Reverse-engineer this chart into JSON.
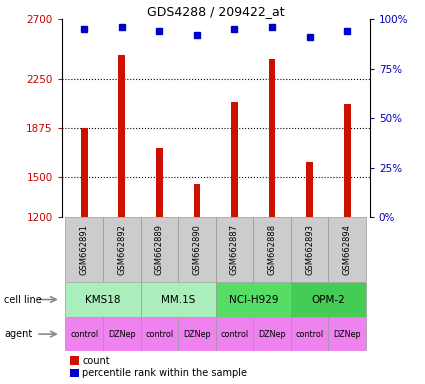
{
  "title": "GDS4288 / 209422_at",
  "samples": [
    "GSM662891",
    "GSM662892",
    "GSM662889",
    "GSM662890",
    "GSM662887",
    "GSM662888",
    "GSM662893",
    "GSM662894"
  ],
  "counts": [
    1875,
    2430,
    1720,
    1450,
    2070,
    2400,
    1620,
    2060
  ],
  "percentile_ranks": [
    95,
    96,
    94,
    92,
    95,
    96,
    91,
    94
  ],
  "cell_lines": [
    {
      "label": "KMS18",
      "span": [
        0,
        2
      ],
      "color": "#aaeebb"
    },
    {
      "label": "MM.1S",
      "span": [
        2,
        4
      ],
      "color": "#aaeebb"
    },
    {
      "label": "NCI-H929",
      "span": [
        4,
        6
      ],
      "color": "#55dd66"
    },
    {
      "label": "OPM-2",
      "span": [
        6,
        8
      ],
      "color": "#44cc55"
    }
  ],
  "agents": [
    "control",
    "DZNep",
    "control",
    "DZNep",
    "control",
    "DZNep",
    "control",
    "DZNep"
  ],
  "bar_color": "#cc1100",
  "dot_color": "#0000cc",
  "ylim_left": [
    1200,
    2700
  ],
  "yticks_left": [
    1200,
    1500,
    1875,
    2250,
    2700
  ],
  "ylim_right": [
    0,
    100
  ],
  "yticks_right": [
    0,
    25,
    50,
    75,
    100
  ],
  "left_tick_color": "#cc0000",
  "right_tick_color": "#0000bb",
  "bar_width": 0.18,
  "dot_size": 5,
  "sample_box_color": "#cccccc",
  "agent_color": "#ee82ee"
}
